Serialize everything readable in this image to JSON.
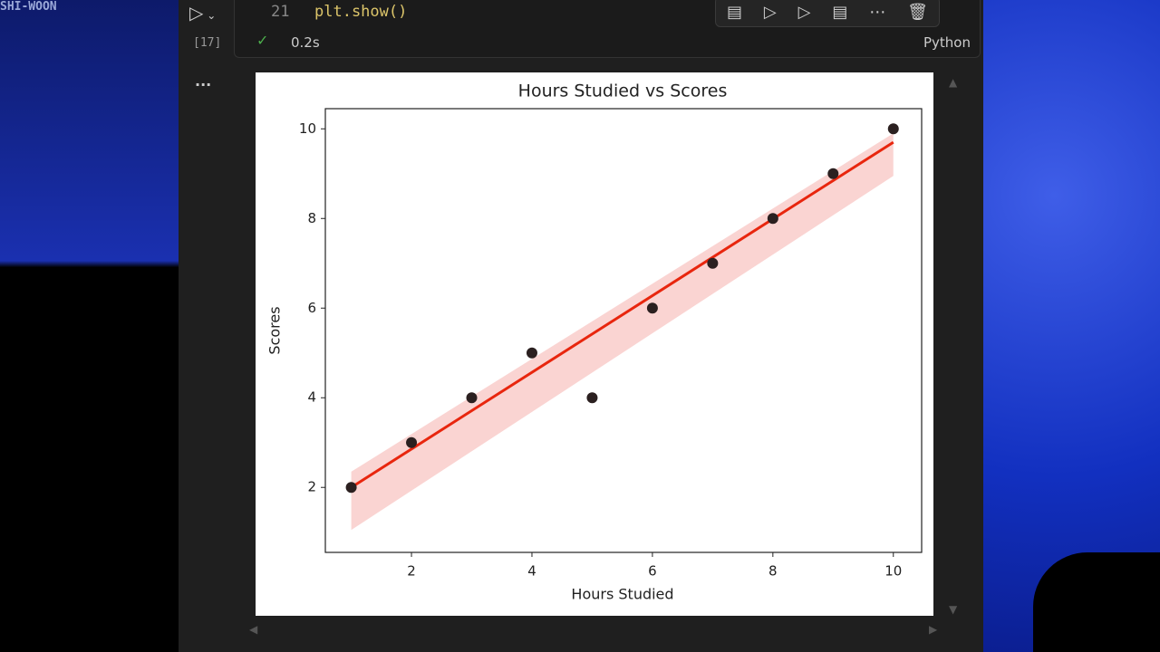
{
  "watermark": "SHI-WOON",
  "cell": {
    "line_number": "21",
    "code": "plt.show()",
    "execution_count": "[17]",
    "duration": "0.2s",
    "language": "Python"
  },
  "output": {
    "menu": "..."
  },
  "chart_data": {
    "type": "scatter",
    "title": "Hours Studied vs Scores",
    "x_label": "Hours Studied",
    "y_label": "Scores",
    "x": [
      1,
      2,
      3,
      4,
      5,
      6,
      7,
      8,
      9,
      10
    ],
    "values": [
      2,
      3,
      4,
      5,
      4,
      6,
      7,
      8,
      9,
      10
    ],
    "color": "#2b2020",
    "fit": {
      "color": "#e8260e",
      "band_color": "#f9c9c7",
      "x": [
        1,
        10
      ],
      "values": [
        2.0,
        9.7
      ],
      "lower": [
        1.05,
        8.95
      ],
      "upper": [
        2.35,
        9.9
      ]
    },
    "xlim": [
      0.57,
      10.47
    ],
    "ylim": [
      0.55,
      10.45
    ],
    "xticks": [
      2,
      4,
      6,
      8,
      10
    ],
    "yticks": [
      2,
      4,
      6,
      8,
      10
    ]
  }
}
